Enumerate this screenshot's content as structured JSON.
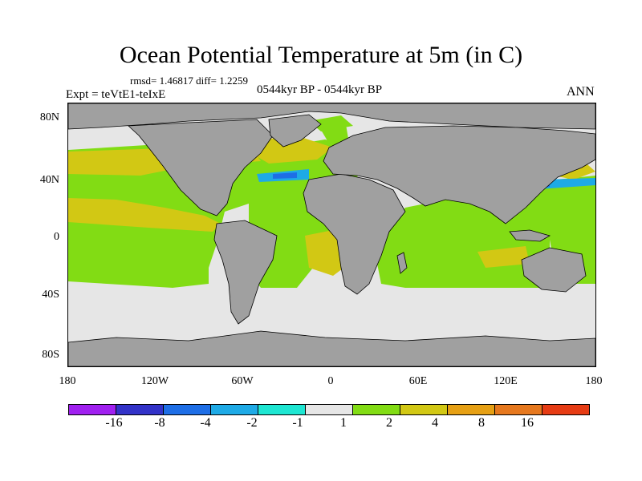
{
  "title": "Ocean Potential Temperature at 5m (in C)",
  "stats": "rmsd= 1.46817 diff= 1.2259",
  "expt": "Expt = teVtE1-teIxE",
  "period": "0544kyr BP - 0544kyr BP",
  "season": "ANN",
  "y_axis": [
    "80N",
    "40N",
    "0",
    "40S",
    "80S"
  ],
  "x_axis": [
    "180",
    "120W",
    "60W",
    "0",
    "60E",
    "120E",
    "180"
  ],
  "colorbar": {
    "colors": [
      "#a020f0",
      "#3232c8",
      "#1e6ee6",
      "#1eaae6",
      "#1ee6d2",
      "#e6e6e6",
      "#82dc14",
      "#d2c814",
      "#e6a014",
      "#e6781e",
      "#e63c14"
    ],
    "labels": [
      "-16",
      "-8",
      "-4",
      "-2",
      "-1",
      "1",
      "2",
      "4",
      "8",
      "16"
    ]
  },
  "map_colors": {
    "land": "#a0a0a0",
    "neutral": "#e6e6e6",
    "green": "#82dc14",
    "yellow": "#d2c814",
    "orange": "#e6a014",
    "cyan": "#1eaae6",
    "blue": "#1e6ee6"
  }
}
